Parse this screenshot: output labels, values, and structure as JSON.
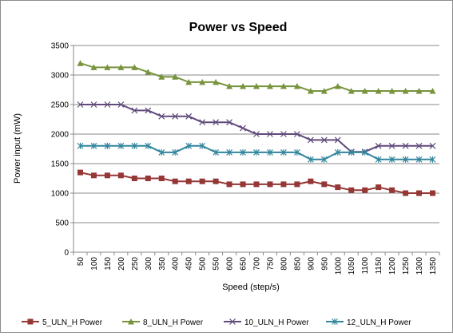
{
  "chart_data": {
    "type": "line",
    "title": "Power vs Speed",
    "xlabel": "Speed (step/s)",
    "ylabel": "Power input (mW)",
    "ylim": [
      0,
      3500
    ],
    "yticks": [
      0,
      500,
      1000,
      1500,
      2000,
      2500,
      3000,
      3500
    ],
    "grid": true,
    "legend_position": "bottom",
    "categories": [
      "50",
      "100",
      "150",
      "200",
      "250",
      "300",
      "350",
      "400",
      "450",
      "500",
      "550",
      "600",
      "650",
      "700",
      "750",
      "800",
      "850",
      "900",
      "950",
      "1000",
      "1050",
      "1100",
      "1150",
      "1200",
      "1250",
      "1300",
      "1350"
    ],
    "series": [
      {
        "name": "5_ULN_H Power",
        "color": "#953735",
        "marker": "square",
        "values": [
          1350,
          1300,
          1300,
          1300,
          1250,
          1250,
          1250,
          1200,
          1200,
          1200,
          1200,
          1150,
          1150,
          1150,
          1150,
          1150,
          1150,
          1200,
          1150,
          1100,
          1050,
          1050,
          1100,
          1050,
          1000,
          1000,
          1000
        ]
      },
      {
        "name": "8_ULN_H Power",
        "color": "#77933c",
        "marker": "triangle",
        "values": [
          3200,
          3130,
          3130,
          3130,
          3130,
          3050,
          2970,
          2970,
          2880,
          2880,
          2880,
          2810,
          2810,
          2810,
          2810,
          2810,
          2810,
          2730,
          2730,
          2810,
          2730,
          2730,
          2730,
          2730,
          2730,
          2730,
          2730
        ]
      },
      {
        "name": "10_ULN_H Power",
        "color": "#604a7b",
        "marker": "x",
        "values": [
          2500,
          2500,
          2500,
          2500,
          2400,
          2400,
          2300,
          2300,
          2300,
          2200,
          2200,
          2200,
          2100,
          2000,
          2000,
          2000,
          2000,
          1900,
          1900,
          1900,
          1700,
          1700,
          1800,
          1800,
          1800,
          1800,
          1800
        ]
      },
      {
        "name": "12_ULN_H Power",
        "color": "#31859c",
        "marker": "star",
        "values": [
          1800,
          1800,
          1800,
          1800,
          1800,
          1800,
          1690,
          1690,
          1800,
          1800,
          1690,
          1690,
          1690,
          1690,
          1690,
          1690,
          1690,
          1570,
          1570,
          1690,
          1690,
          1690,
          1570,
          1570,
          1570,
          1570,
          1570
        ]
      }
    ]
  }
}
